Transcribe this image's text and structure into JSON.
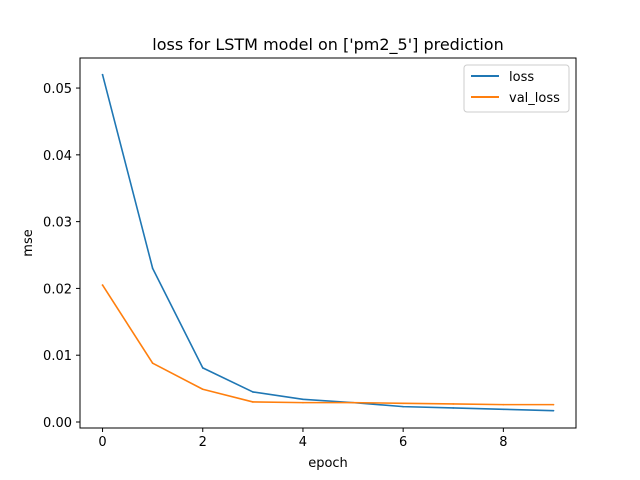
{
  "chart_data": {
    "type": "line",
    "title": "loss for LSTM model on ['pm2_5'] prediction",
    "xlabel": "epoch",
    "ylabel": "mse",
    "xlim": [
      -0.45,
      9.45
    ],
    "ylim": [
      -0.0009,
      0.0545
    ],
    "x_ticks": [
      0,
      2,
      4,
      6,
      8
    ],
    "y_ticks": [
      0.0,
      0.01,
      0.02,
      0.03,
      0.04,
      0.05
    ],
    "y_tick_labels": [
      "0.00",
      "0.01",
      "0.02",
      "0.03",
      "0.04",
      "0.05"
    ],
    "grid": false,
    "legend_position": "top-right",
    "x": [
      0,
      1,
      2,
      3,
      4,
      5,
      6,
      7,
      8,
      9
    ],
    "series": [
      {
        "name": "loss",
        "color": "#1f77b4",
        "values": [
          0.052,
          0.023,
          0.0081,
          0.0045,
          0.0034,
          0.0029,
          0.0023,
          0.0021,
          0.0019,
          0.0017
        ]
      },
      {
        "name": "val_loss",
        "color": "#ff7f0e",
        "values": [
          0.0205,
          0.0088,
          0.0049,
          0.003,
          0.0029,
          0.0029,
          0.0028,
          0.0027,
          0.0026,
          0.0026
        ]
      }
    ]
  }
}
